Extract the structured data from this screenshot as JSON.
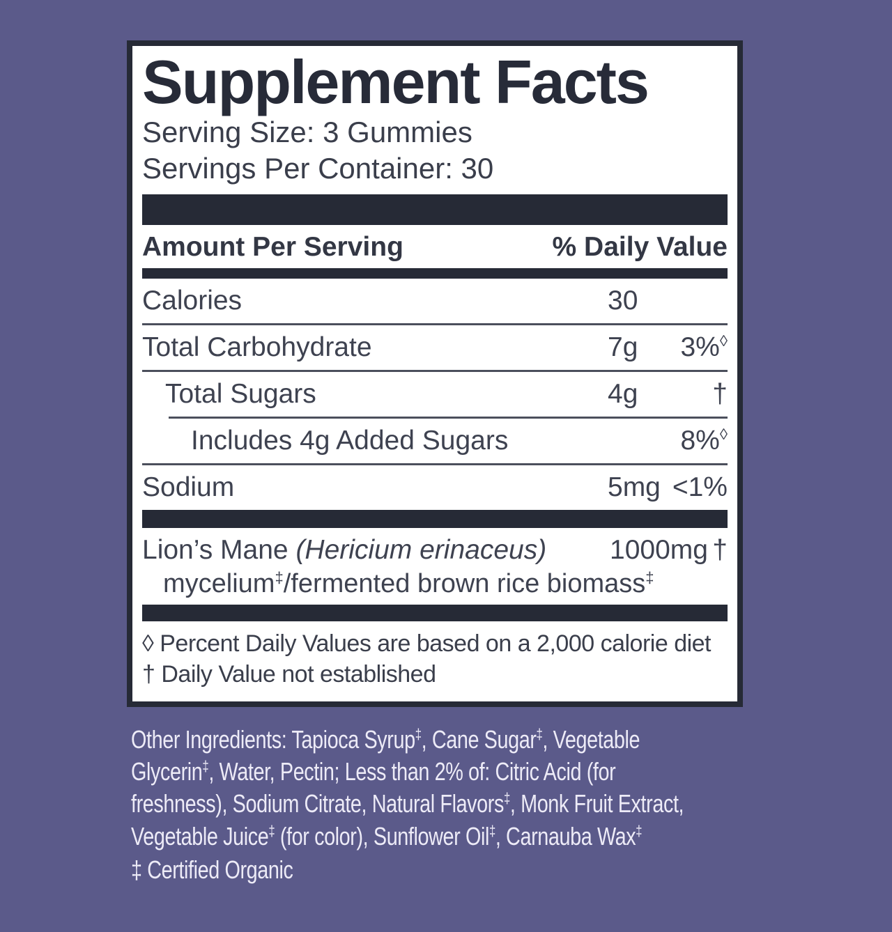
{
  "panel": {
    "title": "Supplement Facts",
    "serving_size": "Serving Size: 3 Gummies",
    "servings_per_container": "Servings Per Container: 30",
    "header": {
      "amount": "Amount Per Serving",
      "dv": "% Daily Value"
    },
    "rows": [
      {
        "label": "Calories",
        "amount": "30",
        "dv": "",
        "dv_sup": ""
      },
      {
        "label": "Total Carbohydrate",
        "amount": "7g",
        "dv": "3%",
        "dv_sup": "◊"
      },
      {
        "label": "Total Sugars",
        "amount": "4g",
        "dv": "†",
        "dv_sup": ""
      },
      {
        "label": "Includes 4g Added Sugars",
        "amount": "",
        "dv": "8%",
        "dv_sup": "◊"
      },
      {
        "label": "Sodium",
        "amount": "5mg",
        "dv": "<1%",
        "dv_sup": ""
      }
    ],
    "botanical": {
      "name": "Lion’s Mane ",
      "latin": "(Hericium erinaceus)",
      "line2_segments": [
        {
          "t": "mycelium"
        },
        {
          "sup": "‡"
        },
        {
          "t": "/fermented brown rice biomass"
        },
        {
          "sup": "‡"
        }
      ],
      "amount": "1000mg",
      "dv": "†"
    },
    "footnotes": [
      "◊ Percent Daily Values are based on a 2,000 calorie diet",
      "† Daily Value not established"
    ]
  },
  "ingredients": {
    "lines": [
      [
        {
          "t": "Other Ingredients: Tapioca Syrup"
        },
        {
          "sup": "‡"
        },
        {
          "t": ", Cane Sugar"
        },
        {
          "sup": "‡"
        },
        {
          "t": ", Vegetable"
        }
      ],
      [
        {
          "t": "Glycerin"
        },
        {
          "sup": "‡"
        },
        {
          "t": ", Water, Pectin; Less than 2% of: Citric Acid (for"
        }
      ],
      [
        {
          "t": "freshness), Sodium Citrate, Natural Flavors"
        },
        {
          "sup": "‡"
        },
        {
          "t": ", Monk Fruit Extract,"
        }
      ],
      [
        {
          "t": "Vegetable Juice"
        },
        {
          "sup": "‡"
        },
        {
          "t": " (for color), Sunflower Oil"
        },
        {
          "sup": "‡"
        },
        {
          "t": ", Carnauba Wax"
        },
        {
          "sup": "‡"
        }
      ]
    ],
    "footnote": "‡ Certified Organic"
  },
  "colors": {
    "background": "#5b5a8a",
    "ink_dark": "#262a36",
    "table_text": "#3e4250",
    "panel_bg": "#ffffff",
    "light_text": "#edebf7",
    "separator": "#4b4f5c"
  }
}
